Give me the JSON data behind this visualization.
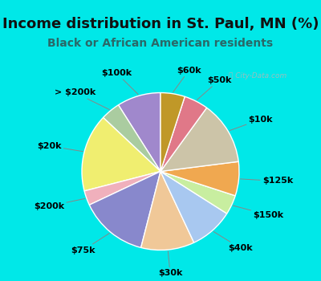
{
  "title": "Income distribution in St. Paul, MN (%)",
  "subtitle": "Black or African American residents",
  "bg_cyan": "#00e8e8",
  "bg_chart": "#e2f5ee",
  "title_color": "#111111",
  "subtitle_color": "#2a6868",
  "watermark": "ⓘ City-Data.com",
  "slices": [
    {
      "label": "$100k",
      "value": 9,
      "color": "#a088cc"
    },
    {
      "label": "> $200k",
      "value": 4,
      "color": "#aacca0"
    },
    {
      "label": "$20k",
      "value": 16,
      "color": "#f0ee70"
    },
    {
      "label": "$200k",
      "value": 3,
      "color": "#f0b0bc"
    },
    {
      "label": "$75k",
      "value": 14,
      "color": "#8888cc"
    },
    {
      "label": "$30k",
      "value": 11,
      "color": "#f0c898"
    },
    {
      "label": "$40k",
      "value": 9,
      "color": "#a8c8f0"
    },
    {
      "label": "$150k",
      "value": 4,
      "color": "#c8eea0"
    },
    {
      "label": "$125k",
      "value": 7,
      "color": "#f0a850"
    },
    {
      "label": "$10k",
      "value": 13,
      "color": "#ccc4a8"
    },
    {
      "label": "$50k",
      "value": 5,
      "color": "#e07888"
    },
    {
      "label": "$60k",
      "value": 5,
      "color": "#c09828"
    }
  ],
  "title_fontsize": 13,
  "subtitle_fontsize": 10,
  "label_fontsize": 8,
  "startangle": 90
}
